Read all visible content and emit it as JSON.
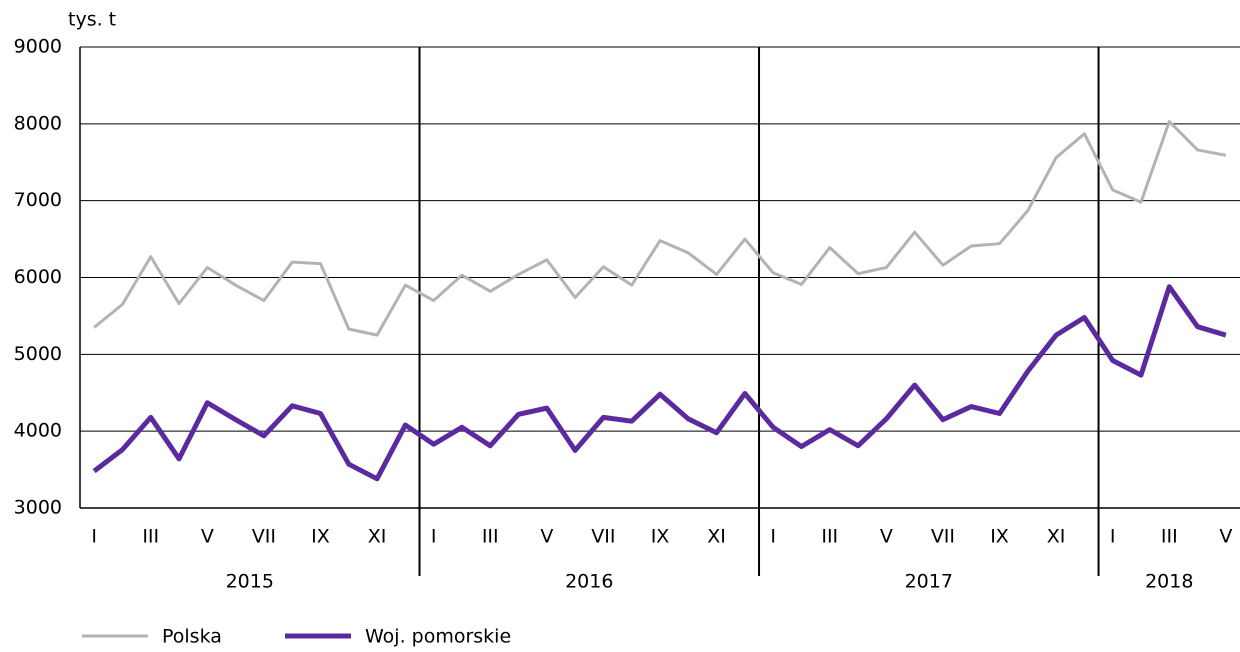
{
  "chart_data": {
    "type": "line",
    "y_label": "tys. t",
    "categories": [
      "I",
      null,
      "III",
      null,
      "V",
      null,
      "VII",
      null,
      "IX",
      null,
      "XI",
      null,
      "I",
      null,
      "III",
      null,
      "V",
      null,
      "VII",
      null,
      "IX",
      null,
      "XI",
      null,
      "I",
      null,
      "III",
      null,
      "V",
      null,
      "VII",
      null,
      "IX",
      null,
      "XI",
      null,
      "I",
      null,
      "III",
      null,
      "V"
    ],
    "year_groups": [
      "2015",
      "2016",
      "2017",
      "2018"
    ],
    "series": [
      {
        "name": "Polska",
        "color": "#b3b3b3",
        "width": 3,
        "values": [
          5350,
          5650,
          6270,
          5660,
          6130,
          5900,
          5700,
          6200,
          6180,
          5330,
          5250,
          5900,
          5700,
          6030,
          5820,
          6040,
          6230,
          5740,
          6140,
          5900,
          6480,
          6320,
          6040,
          6500,
          6060,
          5910,
          6390,
          6050,
          6130,
          6590,
          6160,
          6410,
          6440,
          6870,
          7560,
          7870,
          7140,
          6980,
          8030,
          7660,
          7590
        ]
      },
      {
        "name": "Woj. pomorskie",
        "color": "#5b2a9e",
        "width": 5,
        "values": [
          3480,
          3760,
          4180,
          3640,
          4370,
          4150,
          3940,
          4330,
          4230,
          3570,
          3380,
          4080,
          3830,
          4050,
          3810,
          4220,
          4300,
          3750,
          4180,
          4130,
          4480,
          4160,
          3980,
          4490,
          4050,
          3800,
          4020,
          3810,
          4160,
          4600,
          4150,
          4320,
          4230,
          4780,
          5250,
          5480,
          4920,
          4730,
          5880,
          5360,
          5250
        ]
      }
    ],
    "ylim": [
      3000,
      9000
    ],
    "yticks": [
      3000,
      4000,
      5000,
      6000,
      7000,
      8000,
      9000
    ],
    "grid": true,
    "legend": "bottom-left"
  }
}
